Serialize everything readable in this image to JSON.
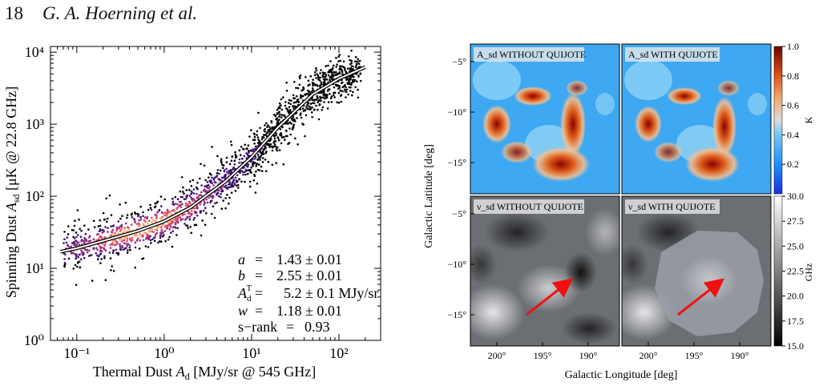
{
  "header": {
    "page_number": "18",
    "authors": "G. A. Hoerning et al."
  },
  "chart_data": [
    {
      "type": "scatter",
      "xscale": "log",
      "yscale": "log",
      "xlim": [
        0.05,
        300
      ],
      "ylim": [
        1,
        12000
      ],
      "xlabel": "Thermal Dust A_d [MJy/sr @ 545 GHz]",
      "ylabel": "Spinning Dust A_sd [μK @ 22.8 GHz]",
      "x_tick_labels": [
        "10⁻¹",
        "10⁰",
        "10¹",
        "10²"
      ],
      "x_ticks": [
        0.1,
        1,
        10,
        100
      ],
      "y_tick_labels": [
        "10⁰",
        "10¹",
        "10²",
        "10³",
        "10⁴"
      ],
      "y_ticks": [
        1,
        10,
        100,
        1000,
        10000
      ],
      "density_colormap": "inferno",
      "fit_curve": {
        "x": [
          0.065,
          0.1,
          0.2,
          0.5,
          1,
          2,
          5,
          10,
          20,
          50,
          100,
          200
        ],
        "y": [
          17,
          19,
          24,
          33,
          45,
          70,
          160,
          350,
          900,
          2600,
          4300,
          6200
        ]
      },
      "annotation": {
        "lines": [
          {
            "label": "a",
            "eq": "=",
            "value": "1.43 ± 0.01"
          },
          {
            "label": "b",
            "eq": "=",
            "value": "2.55 ± 0.01"
          },
          {
            "label": "A_d^T",
            "eq": "=",
            "value": "5.2 ± 0.1 MJy/sr"
          },
          {
            "label": "w",
            "eq": "=",
            "value": "1.18 ± 0.01"
          },
          {
            "label": "s−rank",
            "eq": "=",
            "value": "0.93"
          }
        ]
      }
    },
    {
      "type": "heatmap",
      "panels": [
        {
          "title": "A_sd WITHOUT QUIJOTE"
        },
        {
          "title": "A_sd WITH QUIJOTE"
        },
        {
          "title": "ν_sd WITHOUT QUIJOTE"
        },
        {
          "title": "ν_sd WITH QUIJOTE"
        }
      ],
      "xlabel": "Galactic Longitude [deg]",
      "ylabel": "Galactic Latitude [deg]",
      "x_tick_labels": [
        "200°",
        "195°",
        "190°"
      ],
      "y_tick_labels": [
        "−5°",
        "−10°",
        "−15°"
      ],
      "colorbar_top": {
        "label": "K",
        "ticks": [
          "1.0",
          "0.8",
          "0.6",
          "0.4",
          "0.2"
        ],
        "range": [
          0,
          1
        ]
      },
      "colorbar_bottom": {
        "label": "GHz",
        "ticks": [
          "30.0",
          "27.5",
          "25.0",
          "22.5",
          "20.0",
          "17.5",
          "15.0"
        ],
        "range": [
          15,
          30
        ]
      }
    }
  ]
}
